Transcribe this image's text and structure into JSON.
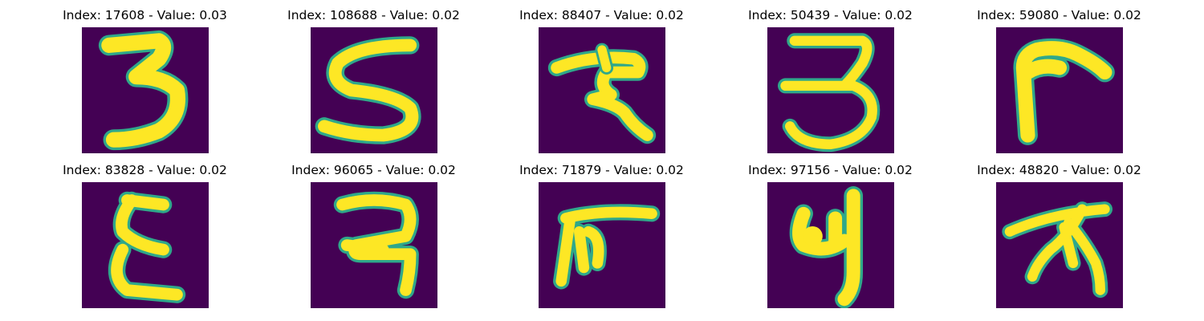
{
  "figure": {
    "panels": [
      {
        "index_label": "Index: 17608 - Value: 0.03",
        "index": 17608,
        "value": 0.03,
        "glyph": "3"
      },
      {
        "index_label": "Index: 108688 - Value: 0.02",
        "index": 108688,
        "value": 0.02,
        "glyph": "5"
      },
      {
        "index_label": "Index: 88407 - Value: 0.02",
        "index": 88407,
        "value": 0.02,
        "glyph": "7-with-hook"
      },
      {
        "index_label": "Index: 50439 - Value: 0.02",
        "index": 50439,
        "value": 0.02,
        "glyph": "3"
      },
      {
        "index_label": "Index: 59080 - Value: 0.02",
        "index": 59080,
        "value": 0.02,
        "glyph": "L-rotated"
      },
      {
        "index_label": "Index: 83828 - Value: 0.02",
        "index": 83828,
        "value": 0.02,
        "glyph": "E-curved"
      },
      {
        "index_label": "Index: 96065 - Value: 0.02",
        "index": 96065,
        "value": 0.02,
        "glyph": "2-like"
      },
      {
        "index_label": "Index: 71879 - Value: 0.02",
        "index": 71879,
        "value": 0.02,
        "glyph": "F-like"
      },
      {
        "index_label": "Index: 97156 - Value: 0.02",
        "index": 97156,
        "value": 0.02,
        "glyph": "4-like"
      },
      {
        "index_label": "Index: 48820 - Value: 0.02",
        "index": 48820,
        "value": 0.02,
        "glyph": "7-with-legs"
      }
    ],
    "colormap": {
      "background": "#440154",
      "edge": "#2fa88a",
      "foreground": "#fde725"
    }
  }
}
